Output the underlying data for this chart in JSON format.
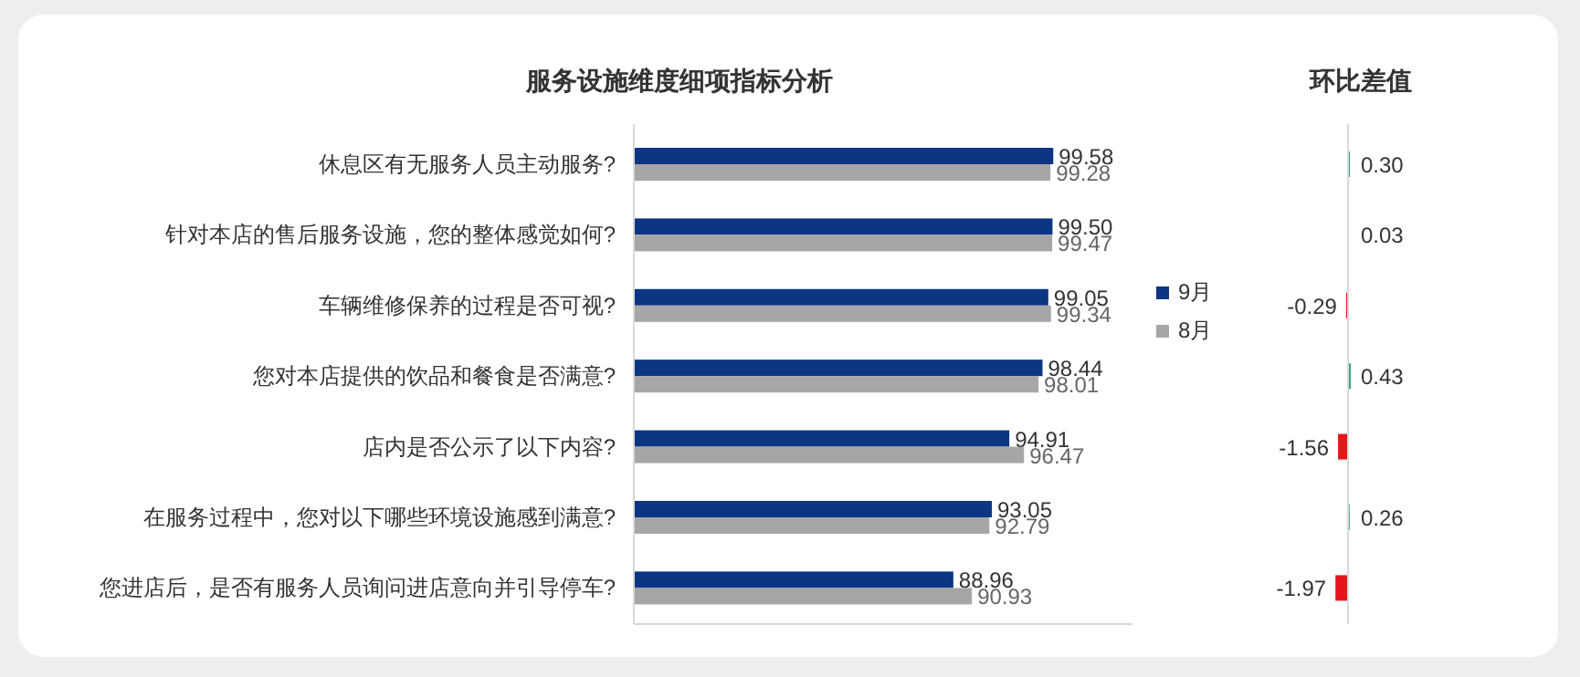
{
  "chart_data": [
    {
      "type": "bar",
      "orientation": "horizontal",
      "title": "服务设施维度细项指标分析",
      "categories": [
        "休息区有无服务人员主动服务?",
        "针对本店的售后服务设施，您的整体感觉如何?",
        "车辆维修保养的过程是否可视?",
        "您对本店提供的饮品和餐食是否满意?",
        "店内是否公示了以下内容?",
        "在服务过程中，您对以下哪些环境设施感到满意?",
        "您进店后，是否有服务人员询问进店意向并引导停车?"
      ],
      "series": [
        {
          "name": "9月",
          "color": "#0c3584",
          "values": [
            99.58,
            99.5,
            99.05,
            98.44,
            94.91,
            93.05,
            88.96
          ],
          "value_labels": [
            "99.58",
            "99.50",
            "99.05",
            "98.44",
            "94.91",
            "93.05",
            "88.96"
          ]
        },
        {
          "name": "8月",
          "color": "#a6a6a6",
          "values": [
            99.28,
            99.47,
            99.34,
            98.01,
            96.47,
            92.79,
            90.93
          ],
          "value_labels": [
            "99.28",
            "99.47",
            "99.34",
            "98.01",
            "96.47",
            "92.79",
            "90.93"
          ]
        }
      ],
      "xlim": [
        55,
        108
      ],
      "legend": "right",
      "tick_labels": "y"
    },
    {
      "type": "bar",
      "orientation": "horizontal",
      "title": "环比差值",
      "categories": [
        null,
        null,
        null,
        null,
        null,
        null,
        null
      ],
      "values": [
        0.3,
        0.03,
        -0.29,
        0.43,
        -1.56,
        0.26,
        -1.97
      ],
      "value_labels": [
        "0.30",
        "0.03",
        "-0.29",
        "0.43",
        "-1.56",
        "0.26",
        "-1.97"
      ],
      "colors": [
        "#3aa37a",
        "#3aa37a",
        "#e8141b",
        "#3aa37a",
        "#e8141b",
        "#3aa37a",
        "#e8141b"
      ],
      "tick_labels": false
    }
  ]
}
